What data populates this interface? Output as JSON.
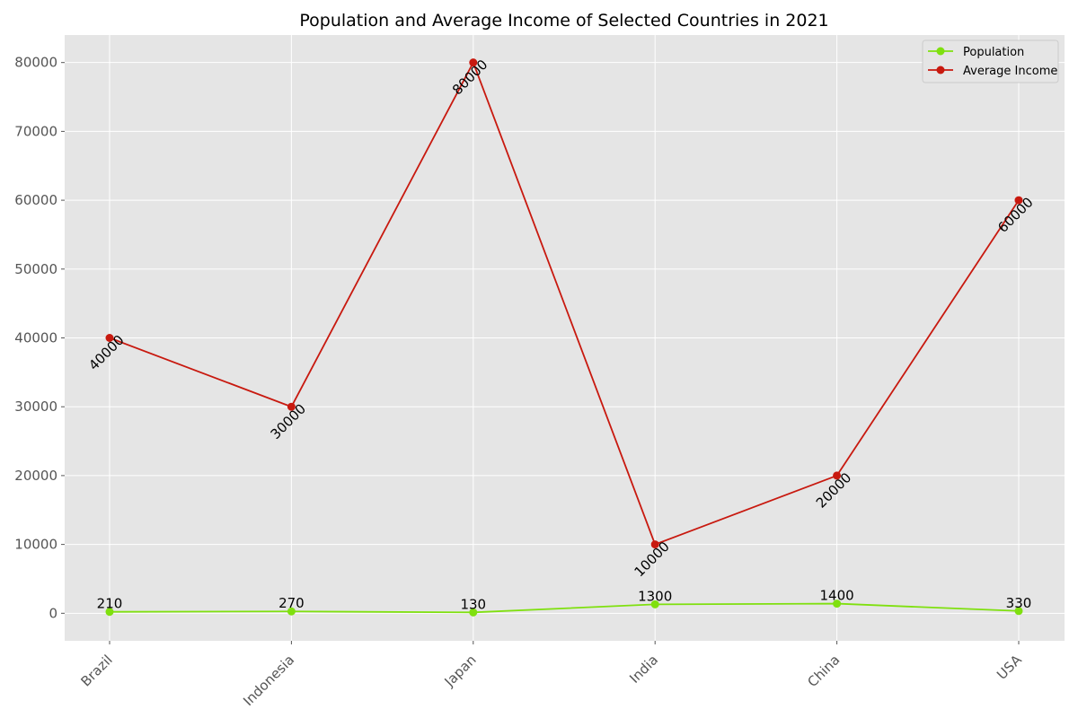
{
  "chart_data": {
    "type": "line",
    "title": "Population and Average Income of Selected Countries in 2021",
    "xlabel": "",
    "ylabel": "",
    "categories": [
      "Brazil",
      "Indonesia",
      "Japan",
      "India",
      "China",
      "USA"
    ],
    "series": [
      {
        "name": "Population",
        "color": "#7fe00f",
        "values": [
          210,
          270,
          130,
          1300,
          1400,
          330
        ]
      },
      {
        "name": "Average Income",
        "color": "#c8190f",
        "values": [
          40000,
          30000,
          80000,
          10000,
          20000,
          60000
        ]
      }
    ],
    "ylim": [
      -4000,
      84000
    ],
    "yticks": [
      0,
      10000,
      20000,
      30000,
      40000,
      50000,
      60000,
      70000,
      80000
    ],
    "grid": true,
    "legend_position": "top-right",
    "background": "#e5e5e5"
  }
}
